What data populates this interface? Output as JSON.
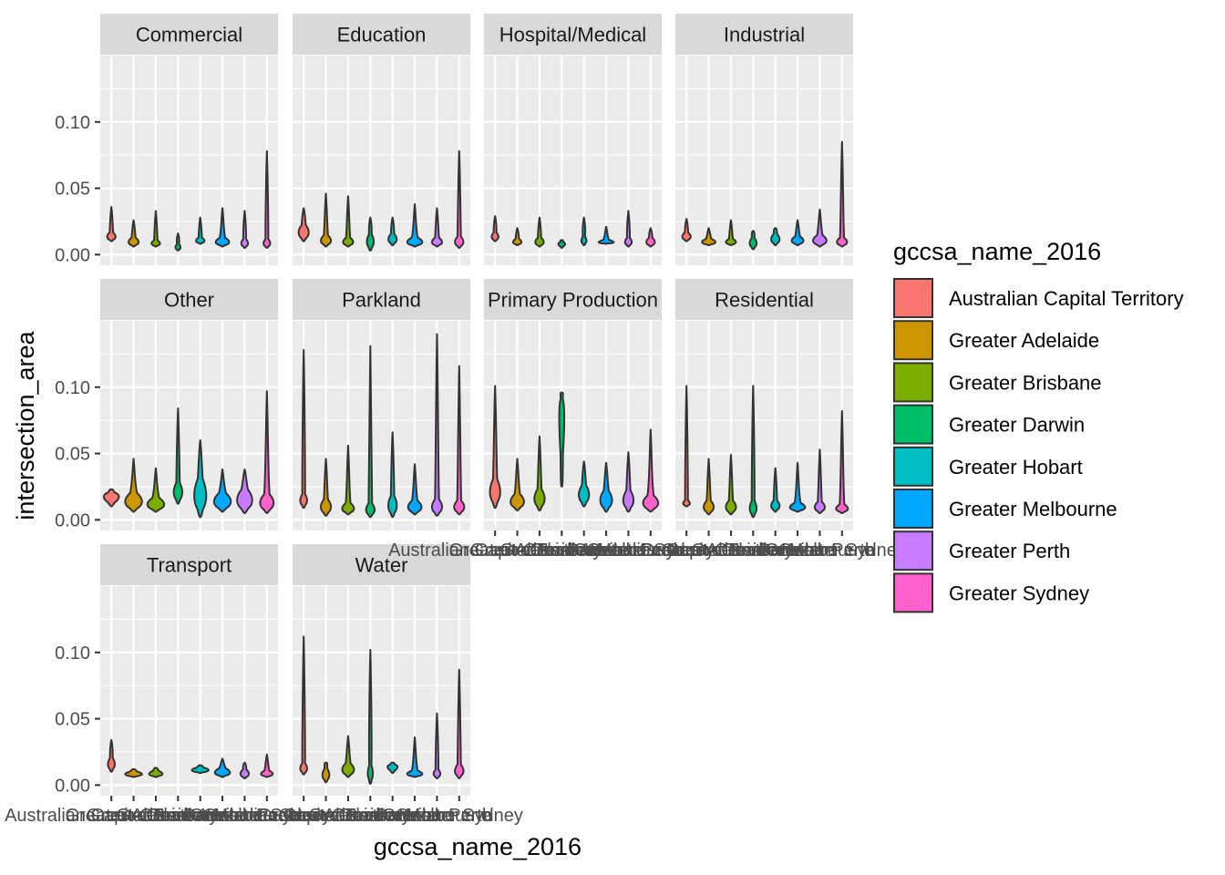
{
  "chart_data": {
    "type": "violin",
    "xlabel": "gccsa_name_2016",
    "ylabel": "intersection_area",
    "ylim": [
      -0.008,
      0.15
    ],
    "yticks": [
      0.0,
      0.05,
      0.1
    ],
    "ytick_labels": [
      "0.00",
      "0.05",
      "0.10"
    ],
    "grid": true,
    "legend_position": "right",
    "legend_title": "gccsa_name_2016",
    "categories": [
      "Australian Capital Territory",
      "Greater Adelaide",
      "Greater Brisbane",
      "Greater Darwin",
      "Greater Hobart",
      "Greater Melbourne",
      "Greater Perth",
      "Greater Sydney"
    ],
    "colors": [
      "#F8766D",
      "#CD9600",
      "#7CAE00",
      "#00BE67",
      "#00BFC4",
      "#00A9FF",
      "#C77CFF",
      "#FF61CC"
    ],
    "facets": [
      {
        "name": "Commercial",
        "min": [
          0.01,
          0.006,
          0.006,
          0.003,
          0.008,
          0.006,
          0.005,
          0.005
        ],
        "max": [
          0.036,
          0.026,
          0.033,
          0.016,
          0.028,
          0.035,
          0.033,
          0.078
        ],
        "mode": [
          0.013,
          0.009,
          0.008,
          0.005,
          0.01,
          0.009,
          0.008,
          0.008
        ],
        "width": [
          0.5,
          0.6,
          0.5,
          0.3,
          0.5,
          0.8,
          0.4,
          0.4
        ]
      },
      {
        "name": "Education",
        "min": [
          0.01,
          0.006,
          0.006,
          0.003,
          0.007,
          0.006,
          0.006,
          0.005
        ],
        "max": [
          0.035,
          0.046,
          0.044,
          0.028,
          0.028,
          0.038,
          0.035,
          0.078
        ],
        "mode": [
          0.016,
          0.01,
          0.009,
          0.009,
          0.011,
          0.009,
          0.009,
          0.009
        ],
        "width": [
          0.6,
          0.6,
          0.6,
          0.4,
          0.5,
          0.9,
          0.6,
          0.5
        ]
      },
      {
        "name": "Hospital/Medical",
        "min": [
          0.01,
          0.007,
          0.006,
          0.005,
          0.007,
          0.008,
          0.006,
          0.006
        ],
        "max": [
          0.029,
          0.02,
          0.028,
          0.011,
          0.028,
          0.021,
          0.033,
          0.02
        ],
        "mode": [
          0.013,
          0.009,
          0.009,
          0.008,
          0.01,
          0.009,
          0.009,
          0.009
        ],
        "width": [
          0.4,
          0.5,
          0.5,
          0.4,
          0.3,
          0.9,
          0.4,
          0.5
        ]
      },
      {
        "name": "Industrial",
        "min": [
          0.01,
          0.007,
          0.007,
          0.004,
          0.007,
          0.007,
          0.006,
          0.006
        ],
        "max": [
          0.027,
          0.02,
          0.026,
          0.018,
          0.02,
          0.026,
          0.034,
          0.085
        ],
        "mode": [
          0.013,
          0.009,
          0.009,
          0.008,
          0.011,
          0.01,
          0.01,
          0.009
        ],
        "width": [
          0.5,
          0.8,
          0.6,
          0.4,
          0.5,
          0.7,
          0.8,
          0.6
        ]
      },
      {
        "name": "Other",
        "min": [
          0.01,
          0.006,
          0.006,
          0.012,
          0.002,
          0.006,
          0.005,
          0.005
        ],
        "max": [
          0.023,
          0.046,
          0.039,
          0.084,
          0.06,
          0.038,
          0.038,
          0.097
        ],
        "mode": [
          0.018,
          0.013,
          0.011,
          0.02,
          0.017,
          0.013,
          0.014,
          0.012
        ],
        "width": [
          0.9,
          1.0,
          1.0,
          0.5,
          0.7,
          1.0,
          0.9,
          0.8
        ]
      },
      {
        "name": "Parkland",
        "min": [
          0.009,
          0.003,
          0.004,
          0.002,
          0.002,
          0.004,
          0.003,
          0.004
        ],
        "max": [
          0.128,
          0.046,
          0.056,
          0.131,
          0.066,
          0.042,
          0.14,
          0.116
        ],
        "mode": [
          0.014,
          0.009,
          0.008,
          0.007,
          0.01,
          0.009,
          0.009,
          0.009
        ],
        "width": [
          0.4,
          0.6,
          0.7,
          0.5,
          0.5,
          0.8,
          0.6,
          0.6
        ]
      },
      {
        "name": "Primary Production",
        "min": [
          0.009,
          0.007,
          0.007,
          0.025,
          0.01,
          0.006,
          0.006,
          0.006
        ],
        "max": [
          0.101,
          0.046,
          0.063,
          0.096,
          0.044,
          0.043,
          0.051,
          0.068
        ],
        "mode": [
          0.02,
          0.013,
          0.015,
          0.085,
          0.018,
          0.014,
          0.014,
          0.012
        ],
        "width": [
          0.6,
          0.8,
          0.6,
          0.3,
          0.6,
          0.7,
          0.6,
          0.9
        ]
      },
      {
        "name": "Residential",
        "min": [
          0.01,
          0.004,
          0.004,
          0.002,
          0.006,
          0.006,
          0.005,
          0.005
        ],
        "max": [
          0.101,
          0.046,
          0.049,
          0.101,
          0.039,
          0.043,
          0.053,
          0.082
        ],
        "mode": [
          0.012,
          0.009,
          0.009,
          0.008,
          0.01,
          0.009,
          0.009,
          0.008
        ],
        "width": [
          0.4,
          0.6,
          0.6,
          0.4,
          0.5,
          0.9,
          0.6,
          0.7
        ]
      },
      {
        "name": "Transport",
        "min": [
          0.01,
          0.006,
          0.006,
          null,
          0.009,
          0.006,
          0.005,
          0.006
        ],
        "max": [
          0.034,
          0.012,
          0.013,
          null,
          0.015,
          0.02,
          0.017,
          0.023
        ],
        "mode": [
          0.015,
          0.008,
          0.008,
          null,
          0.011,
          0.009,
          0.008,
          0.008
        ],
        "width": [
          0.4,
          1.0,
          0.8,
          0,
          1.0,
          0.9,
          0.5,
          0.7
        ]
      },
      {
        "name": "Water",
        "min": [
          0.008,
          0.002,
          0.006,
          0.001,
          0.009,
          0.006,
          0.005,
          0.005
        ],
        "max": [
          0.112,
          0.017,
          0.037,
          0.102,
          0.017,
          0.036,
          0.054,
          0.087
        ],
        "mode": [
          0.012,
          0.007,
          0.011,
          0.008,
          0.014,
          0.008,
          0.008,
          0.01
        ],
        "width": [
          0.4,
          0.4,
          0.7,
          0.3,
          0.6,
          0.9,
          0.4,
          0.5
        ]
      }
    ]
  }
}
